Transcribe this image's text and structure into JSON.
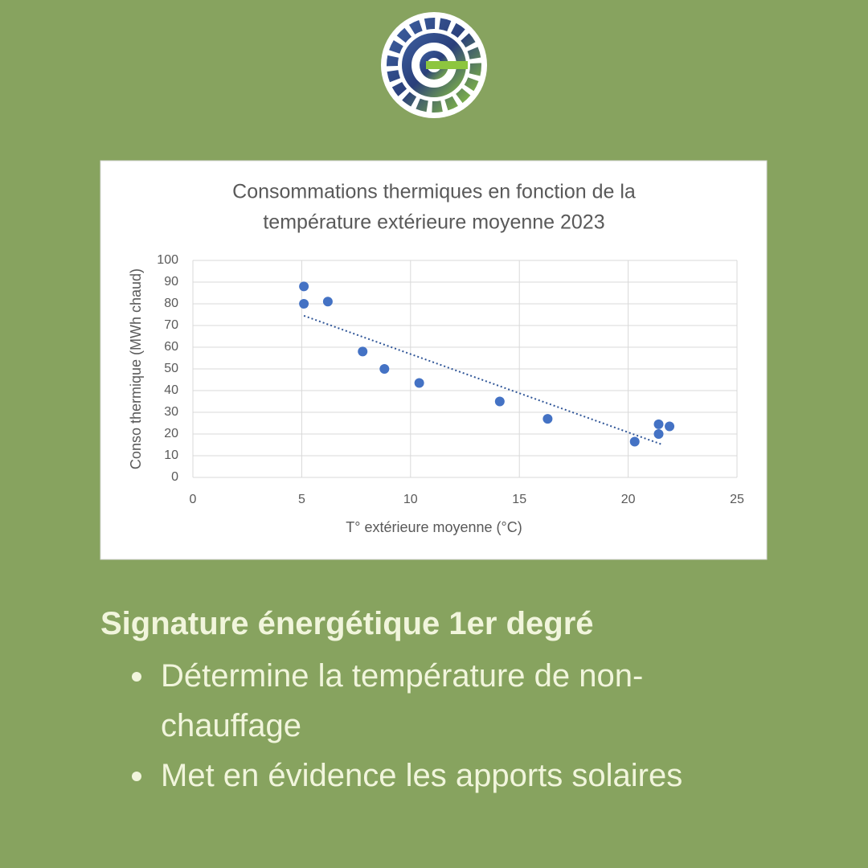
{
  "chart_data": {
    "type": "scatter",
    "title": [
      "Consommations thermiques en fonction de la",
      "température extérieure moyenne 2023"
    ],
    "x_label": "T°  extérieure moyenne (°C)",
    "y_label": "Conso thermique (MWh chaud)",
    "series": [
      {
        "color": "#4472c4",
        "x": [
          5.1,
          5.1,
          6.2,
          7.8,
          8.8,
          10.4,
          14.1,
          16.3,
          20.3,
          21.4,
          21.4,
          21.9
        ],
        "values": [
          88,
          80,
          81,
          58,
          50,
          43.5,
          35,
          27,
          16.5,
          24.5,
          20,
          23.5
        ]
      }
    ],
    "trendline": {
      "color": "#2f5597",
      "x": [
        5.1,
        21.6
      ],
      "values": [
        74.5,
        15
      ]
    },
    "xlim": [
      0,
      25
    ],
    "xticks": [
      0,
      5,
      10,
      15,
      20,
      25
    ],
    "ylim": [
      0,
      100
    ],
    "yticks": [
      0,
      10,
      20,
      30,
      40,
      50,
      60,
      70,
      80,
      90,
      100
    ],
    "grid": true
  },
  "caption": {
    "heading": "Signature énergétique 1er degré",
    "bullets": [
      "Détermine la température de non-chauffage",
      "Met en évidence les apports solaires"
    ]
  }
}
